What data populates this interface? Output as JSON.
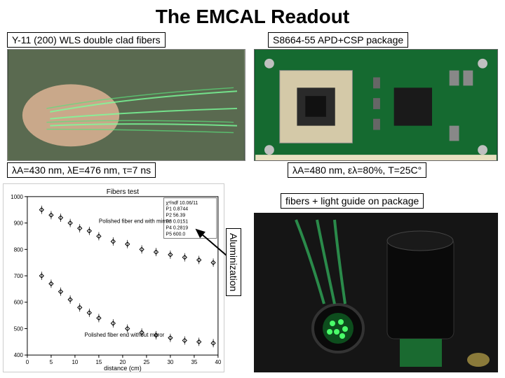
{
  "title": "The EMCAL Readout",
  "labels": {
    "fibers": "Y-11 (200) WLS double clad fibers",
    "apd": "S8664-55 APD+CSP package",
    "fiber_params": "λA=430 nm, λE=476 nm, τ=7 ns",
    "apd_params": "λA=480 nm, ελ=80%, T=25C°",
    "guide": "fibers + light guide on package",
    "aluminization": "Aluminization"
  },
  "chart": {
    "title": "Fibers test",
    "y_ticks": [
      400,
      500,
      600,
      700,
      800,
      900,
      1000
    ],
    "x_ticks": [
      0,
      5,
      10,
      15,
      20,
      25,
      30,
      35,
      40
    ],
    "x_label": "distance (cm)",
    "series": [
      {
        "label": "Polished fiber end with mirror",
        "points": [
          {
            "x": 3,
            "y": 950
          },
          {
            "x": 5,
            "y": 930
          },
          {
            "x": 7,
            "y": 920
          },
          {
            "x": 9,
            "y": 900
          },
          {
            "x": 11,
            "y": 880
          },
          {
            "x": 13,
            "y": 870
          },
          {
            "x": 15,
            "y": 850
          },
          {
            "x": 18,
            "y": 830
          },
          {
            "x": 21,
            "y": 820
          },
          {
            "x": 24,
            "y": 800
          },
          {
            "x": 27,
            "y": 790
          },
          {
            "x": 30,
            "y": 780
          },
          {
            "x": 33,
            "y": 770
          },
          {
            "x": 36,
            "y": 760
          },
          {
            "x": 39,
            "y": 750
          }
        ]
      },
      {
        "label": "Polished fiber end without mirror",
        "points": [
          {
            "x": 3,
            "y": 700
          },
          {
            "x": 5,
            "y": 670
          },
          {
            "x": 7,
            "y": 640
          },
          {
            "x": 9,
            "y": 610
          },
          {
            "x": 11,
            "y": 580
          },
          {
            "x": 13,
            "y": 560
          },
          {
            "x": 15,
            "y": 540
          },
          {
            "x": 18,
            "y": 520
          },
          {
            "x": 21,
            "y": 500
          },
          {
            "x": 24,
            "y": 485
          },
          {
            "x": 27,
            "y": 475
          },
          {
            "x": 30,
            "y": 465
          },
          {
            "x": 33,
            "y": 455
          },
          {
            "x": 36,
            "y": 450
          },
          {
            "x": 39,
            "y": 445
          }
        ]
      }
    ],
    "fit_box": [
      "χ²/ndf 10.06/11",
      "P1 0.8744",
      "P2 56.39",
      "P3 0.0151",
      "P4 0.2819",
      "P5 600.0"
    ],
    "ylim": [
      400,
      1000
    ],
    "xlim": [
      0,
      40
    ],
    "marker": "diamond",
    "marker_color": "#000000",
    "axis_color": "#000000",
    "font_size": 8
  },
  "colors": {
    "border": "#000000",
    "pcb": "#1a7a3a",
    "dark": "#1a1a1a"
  }
}
